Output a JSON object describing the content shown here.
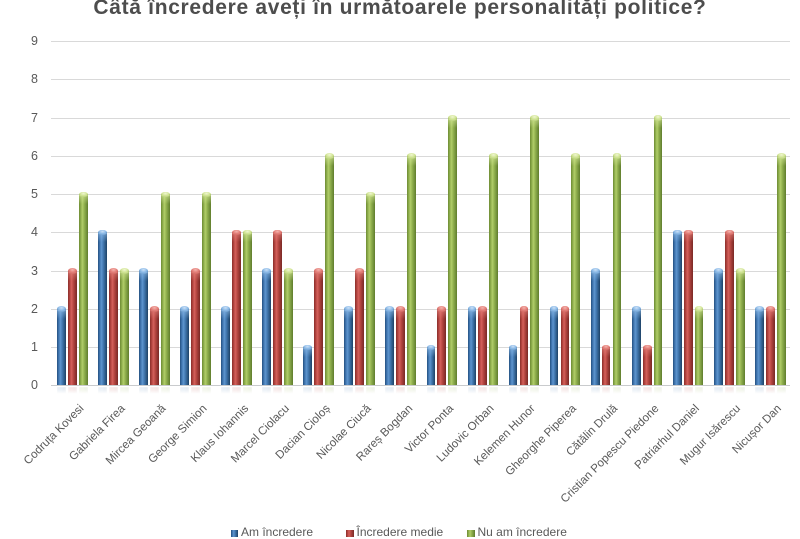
{
  "chart_data": {
    "type": "bar",
    "title": "Câtă încredere aveți în următoarele personalități politice?",
    "categories": [
      "Codruța Kovesi",
      "Gabriela Firea",
      "Mircea Geoană",
      "George Simion",
      "Klaus Iohannis",
      "Marcel Ciolacu",
      "Dacian Cioloș",
      "Nicolae Ciucă",
      "Rareș Bogdan",
      "Victor Ponta",
      "Ludovic Orban",
      "Kelemen Hunor",
      "Gheorghe Piperea",
      "Cătălin Drulă",
      "Cristian Popescu Piedone",
      "Patriarhul Daniel",
      "Mugur Isărescu",
      "Nicușor Dan"
    ],
    "series": [
      {
        "name": "Am încredere",
        "color": "#4f81bd",
        "values": [
          2,
          4,
          3,
          2,
          2,
          3,
          1,
          2,
          2,
          1,
          2,
          1,
          2,
          3,
          2,
          4,
          3,
          2
        ]
      },
      {
        "name": "Încredere medie",
        "color": "#c0504d",
        "values": [
          3,
          3,
          2,
          3,
          4,
          4,
          3,
          3,
          2,
          2,
          2,
          2,
          2,
          1,
          1,
          4,
          4,
          2
        ]
      },
      {
        "name": "Nu am încredere",
        "color": "#9bbb59",
        "values": [
          5,
          3,
          5,
          5,
          4,
          3,
          6,
          5,
          6,
          7,
          6,
          7,
          6,
          6,
          7,
          2,
          3,
          6
        ]
      }
    ],
    "xlabel": "",
    "ylabel": "",
    "ylim": [
      0,
      9
    ],
    "yticks": [
      0,
      1,
      2,
      3,
      4,
      5,
      6,
      7,
      8,
      9
    ],
    "grid": true,
    "legend_position": "bottom",
    "bar_style": "cylinder"
  },
  "style": {
    "title_color": "#4d4d4d",
    "tick_color": "#595959",
    "gridline_color": "#d9d9d9",
    "background": "#ffffff",
    "series_gradients": {
      "blue": {
        "body": [
          "#24507e",
          "#3a6ea7",
          "#5e95cf",
          "#3f74ab",
          "#2a5681",
          "#1e4166"
        ],
        "cap_core": "#cde1f6",
        "cap_hi": "#8fbce8",
        "cap_lo": "#3f74ab"
      },
      "red": {
        "body": [
          "#892f2b",
          "#ab3f3a",
          "#d4615b",
          "#b2443f",
          "#8e332f",
          "#7a2925"
        ],
        "cap_core": "#f4b5af",
        "cap_hi": "#e4817b",
        "cap_lo": "#b2443f"
      },
      "green": {
        "body": [
          "#6d8a33",
          "#87a747",
          "#b1cd69",
          "#8dad4b",
          "#71903a",
          "#5f7c2c"
        ],
        "cap_core": "#f0f6d4",
        "cap_hi": "#d3e698",
        "cap_lo": "#8dad4b"
      }
    }
  }
}
